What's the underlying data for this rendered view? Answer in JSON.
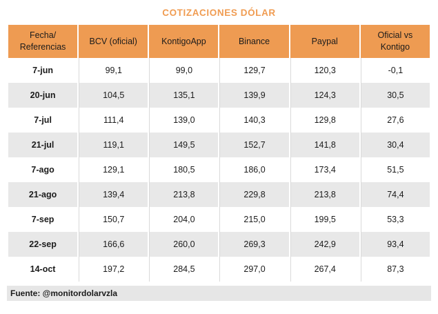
{
  "title": "COTIZACIONES DÓLAR",
  "footer": {
    "source_label": "Fuente: @monitordolarvzla"
  },
  "colors": {
    "accent_orange": "#EE9B52",
    "title_orange": "#F09C52",
    "row_alt_gray": "#E8E8E8",
    "grid_line_gray": "#D9D9D9",
    "footer_bar_gray": "#E6E6E6",
    "text_dark": "#1B1B1B"
  },
  "table": {
    "columns": [
      "Fecha/\nReferencias",
      "BCV (oficial)",
      "KontigoApp",
      "Binance",
      "Paypal",
      "Oficial vs\nKontigo"
    ],
    "rows": [
      {
        "fecha": "7-jun",
        "values": [
          "99,1",
          "99,0",
          "129,7",
          "120,3",
          "-0,1"
        ]
      },
      {
        "fecha": "20-jun",
        "values": [
          "104,5",
          "135,1",
          "139,9",
          "124,3",
          "30,5"
        ]
      },
      {
        "fecha": "7-jul",
        "values": [
          "111,4",
          "139,0",
          "140,3",
          "129,8",
          "27,6"
        ]
      },
      {
        "fecha": "21-jul",
        "values": [
          "119,1",
          "149,5",
          "152,7",
          "141,8",
          "30,4"
        ]
      },
      {
        "fecha": "7-ago",
        "values": [
          "129,1",
          "180,5",
          "186,0",
          "173,4",
          "51,5"
        ]
      },
      {
        "fecha": "21-ago",
        "values": [
          "139,4",
          "213,8",
          "229,8",
          "213,8",
          "74,4"
        ]
      },
      {
        "fecha": "7-sep",
        "values": [
          "150,7",
          "204,0",
          "215,0",
          "199,5",
          "53,3"
        ]
      },
      {
        "fecha": "22-sep",
        "values": [
          "166,6",
          "260,0",
          "269,3",
          "242,9",
          "93,4"
        ]
      },
      {
        "fecha": "14-oct",
        "values": [
          "197,2",
          "284,5",
          "297,0",
          "267,4",
          "87,3"
        ]
      }
    ]
  },
  "chart_data": {
    "type": "table",
    "title": "COTIZACIONES DÓLAR",
    "categories": [
      "7-jun",
      "20-jun",
      "7-jul",
      "21-jul",
      "7-ago",
      "21-ago",
      "7-sep",
      "22-sep",
      "14-oct"
    ],
    "series": [
      {
        "name": "BCV (oficial)",
        "values": [
          99.1,
          104.5,
          111.4,
          119.1,
          129.1,
          139.4,
          150.7,
          166.6,
          197.2
        ]
      },
      {
        "name": "KontigoApp",
        "values": [
          99.0,
          135.1,
          139.0,
          149.5,
          180.5,
          213.8,
          204.0,
          260.0,
          284.5
        ]
      },
      {
        "name": "Binance",
        "values": [
          129.7,
          139.9,
          140.3,
          152.7,
          186.0,
          229.8,
          215.0,
          269.3,
          297.0
        ]
      },
      {
        "name": "Paypal",
        "values": [
          120.3,
          124.3,
          129.8,
          141.8,
          173.4,
          213.8,
          199.5,
          242.9,
          267.4
        ]
      },
      {
        "name": "Oficial vs Kontigo",
        "values": [
          -0.1,
          30.5,
          27.6,
          30.4,
          51.5,
          74.4,
          53.3,
          93.4,
          87.3
        ]
      }
    ],
    "source": "Fuente: @monitordolarvzla",
    "layout": {
      "header_background": "#EE9B52",
      "alternating_rows": true,
      "legend_position": "none",
      "grid": "vertical-only"
    }
  }
}
